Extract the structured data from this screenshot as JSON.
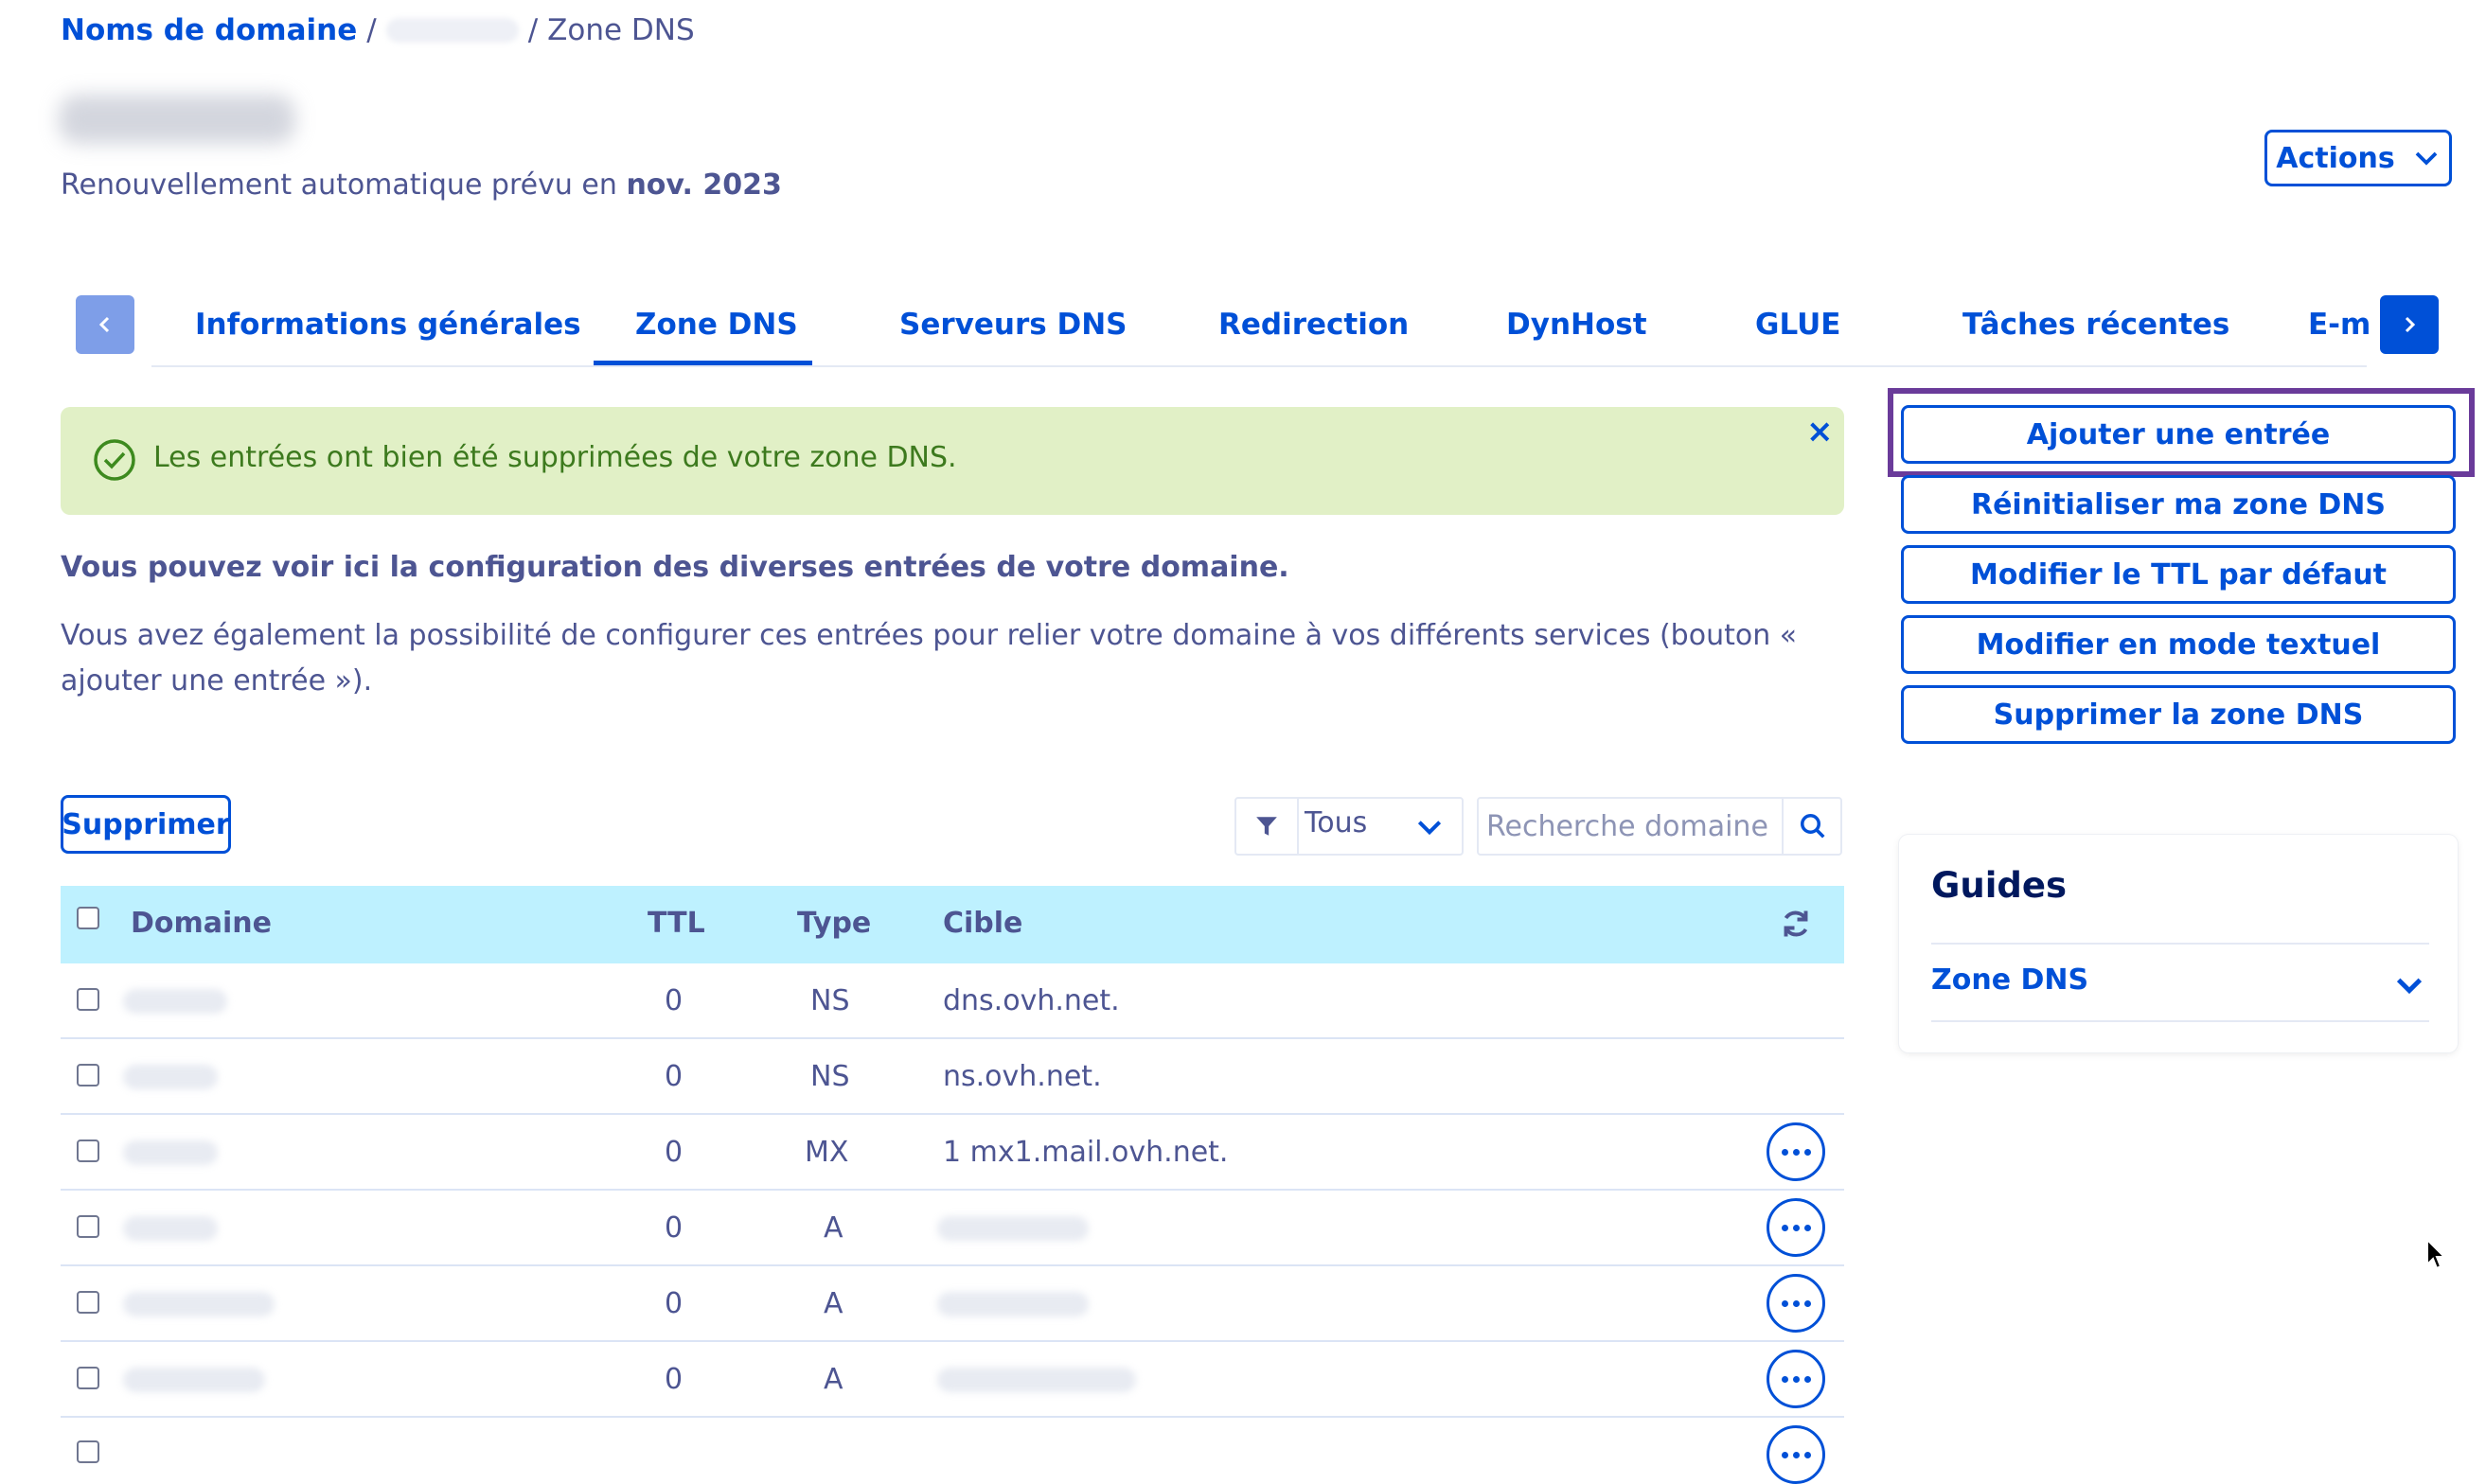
{
  "breadcrumb": {
    "root": "Noms de domaine",
    "separator": "/",
    "current": "Zone DNS"
  },
  "header": {
    "renewal_prefix": "Renouvellement automatique prévu en",
    "renewal_date": "nov. 2023",
    "actions_label": "Actions"
  },
  "tabs": [
    {
      "label": "Informations générales",
      "active": false
    },
    {
      "label": "Zone DNS",
      "active": true
    },
    {
      "label": "Serveurs DNS",
      "active": false
    },
    {
      "label": "Redirection",
      "active": false
    },
    {
      "label": "DynHost",
      "active": false
    },
    {
      "label": "GLUE",
      "active": false
    },
    {
      "label": "Tâches récentes",
      "active": false
    },
    {
      "label": "E-mai",
      "active": false
    }
  ],
  "alert": {
    "text": "Les entrées ont bien été supprimées de votre zone DNS.",
    "close": "×"
  },
  "intro": {
    "title": "Vous pouvez voir ici la configuration des diverses entrées de votre domaine.",
    "text": "Vous avez également la possibilité de configurer ces entrées pour relier votre domaine à vos différents services (bouton « ajouter une entrée »)."
  },
  "side_actions": {
    "add_entry": "Ajouter une entrée",
    "reset_zone": "Réinitialiser ma zone DNS",
    "edit_ttl": "Modifier le TTL par défaut",
    "text_mode": "Modifier en mode textuel",
    "delete_zone": "Supprimer la zone DNS"
  },
  "guides": {
    "title": "Guides",
    "item": "Zone DNS"
  },
  "toolbar": {
    "delete_label": "Supprimer",
    "filter_value": "Tous",
    "search_placeholder": "Recherche domaine…"
  },
  "table": {
    "columns": {
      "domain": "Domaine",
      "ttl": "TTL",
      "type": "Type",
      "target": "Cible"
    },
    "rows": [
      {
        "ttl": "0",
        "type": "NS",
        "target": "dns.ovh.net."
      },
      {
        "ttl": "0",
        "type": "NS",
        "target": "ns.ovh.net."
      },
      {
        "ttl": "0",
        "type": "MX",
        "target": "1 mx1.mail.ovh.net."
      },
      {
        "ttl": "0",
        "type": "A",
        "target": ""
      },
      {
        "ttl": "0",
        "type": "A",
        "target": ""
      },
      {
        "ttl": "0",
        "type": "A",
        "target": ""
      }
    ]
  },
  "colors": {
    "primary": "#0050d7",
    "text": "#4d5592",
    "success_bg": "#e1f0c6",
    "table_header_bg": "#bef1ff",
    "highlight": "#6a3b9a"
  }
}
